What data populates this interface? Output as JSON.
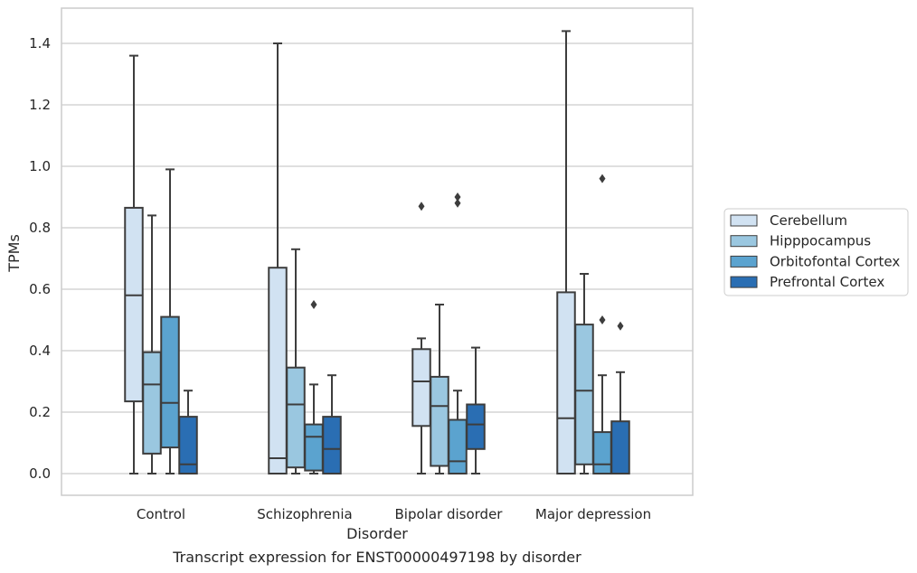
{
  "chart_data": {
    "type": "box",
    "title": "Transcript expression for ENST00000497198 by disorder",
    "xlabel": "Disorder",
    "ylabel": "TPMs",
    "categories": [
      "Control",
      "Schizophrenia",
      "Bipolar disorder",
      "Major depression"
    ],
    "ylim": [
      -0.07,
      1.51
    ],
    "yticks": [
      0.0,
      0.2,
      0.4,
      0.6,
      0.8,
      1.0,
      1.2,
      1.4
    ],
    "ytick_labels": [
      "0.0",
      "0.2",
      "0.4",
      "0.6",
      "0.8",
      "1.0",
      "1.2",
      "1.4"
    ],
    "grid": "horizontal",
    "legend_position": "center-right",
    "series": [
      {
        "name": "Cerebellum",
        "color": "#d1e2f2",
        "boxes": [
          {
            "whisker_low": 0.0,
            "q1": 0.235,
            "median": 0.58,
            "q3": 0.865,
            "whisker_high": 1.36,
            "outliers": []
          },
          {
            "whisker_low": 0.0,
            "q1": 0.0,
            "median": 0.05,
            "q3": 0.67,
            "whisker_high": 1.4,
            "outliers": []
          },
          {
            "whisker_low": 0.0,
            "q1": 0.155,
            "median": 0.3,
            "q3": 0.405,
            "whisker_high": 0.44,
            "outliers": [
              0.87
            ]
          },
          {
            "whisker_low": 0.0,
            "q1": 0.0,
            "median": 0.18,
            "q3": 0.59,
            "whisker_high": 1.44,
            "outliers": []
          }
        ]
      },
      {
        "name": "Hipppocampus",
        "color": "#9ac7e0",
        "boxes": [
          {
            "whisker_low": 0.0,
            "q1": 0.065,
            "median": 0.29,
            "q3": 0.395,
            "whisker_high": 0.84,
            "outliers": []
          },
          {
            "whisker_low": 0.0,
            "q1": 0.02,
            "median": 0.225,
            "q3": 0.345,
            "whisker_high": 0.73,
            "outliers": []
          },
          {
            "whisker_low": 0.0,
            "q1": 0.025,
            "median": 0.22,
            "q3": 0.315,
            "whisker_high": 0.55,
            "outliers": []
          },
          {
            "whisker_low": 0.0,
            "q1": 0.03,
            "median": 0.27,
            "q3": 0.485,
            "whisker_high": 0.65,
            "outliers": []
          }
        ]
      },
      {
        "name": "Orbitofontal Cortex",
        "color": "#5ba3cf",
        "boxes": [
          {
            "whisker_low": 0.0,
            "q1": 0.085,
            "median": 0.23,
            "q3": 0.51,
            "whisker_high": 0.99,
            "outliers": []
          },
          {
            "whisker_low": 0.0,
            "q1": 0.01,
            "median": 0.12,
            "q3": 0.16,
            "whisker_high": 0.29,
            "outliers": [
              0.55
            ]
          },
          {
            "whisker_low": 0.0,
            "q1": 0.0,
            "median": 0.04,
            "q3": 0.175,
            "whisker_high": 0.27,
            "outliers": [
              0.88,
              0.9
            ]
          },
          {
            "whisker_low": 0.0,
            "q1": 0.0,
            "median": 0.03,
            "q3": 0.135,
            "whisker_high": 0.32,
            "outliers": [
              0.5,
              0.96
            ]
          }
        ]
      },
      {
        "name": "Prefrontal Cortex",
        "color": "#2a6eb3",
        "boxes": [
          {
            "whisker_low": 0.0,
            "q1": 0.0,
            "median": 0.03,
            "q3": 0.185,
            "whisker_high": 0.27,
            "outliers": []
          },
          {
            "whisker_low": 0.0,
            "q1": 0.0,
            "median": 0.08,
            "q3": 0.185,
            "whisker_high": 0.32,
            "outliers": []
          },
          {
            "whisker_low": 0.0,
            "q1": 0.08,
            "median": 0.16,
            "q3": 0.225,
            "whisker_high": 0.41,
            "outliers": []
          },
          {
            "whisker_low": 0.0,
            "q1": 0.0,
            "median": 0.0,
            "q3": 0.17,
            "whisker_high": 0.33,
            "outliers": [
              0.48
            ]
          }
        ]
      }
    ]
  }
}
